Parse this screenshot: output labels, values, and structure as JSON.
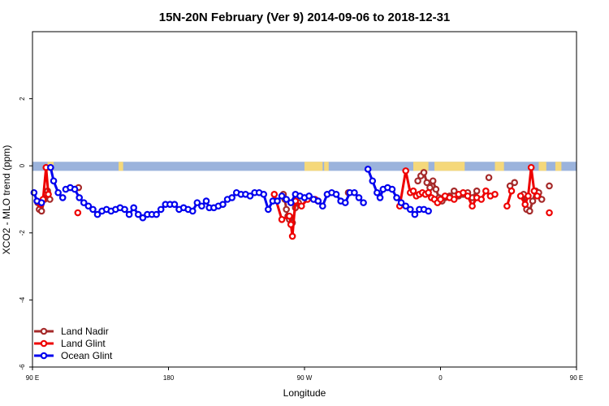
{
  "chart_data": {
    "type": "line",
    "title": "15N-20N February (Ver 9)   2014-09-06 to 2018-12-31",
    "xlabel": "Longitude",
    "ylabel": "XCO2 - MLO trend (ppm)",
    "xlim": [
      90,
      450
    ],
    "ylim": [
      -6,
      4
    ],
    "x_ticks": [
      {
        "value": 90,
        "label": "90 E"
      },
      {
        "value": 180,
        "label": "180"
      },
      {
        "value": 270,
        "label": "90 W"
      },
      {
        "value": 360,
        "label": "0"
      },
      {
        "value": 450,
        "label": "90 E"
      },
      {
        "value": 540,
        "label": "180"
      }
    ],
    "y_ticks": [
      {
        "value": -6,
        "label": "-6"
      },
      {
        "value": -4,
        "label": "-4"
      },
      {
        "value": -2,
        "label": "-2"
      },
      {
        "value": 0,
        "label": "0"
      },
      {
        "value": 2,
        "label": "2"
      }
    ],
    "land_band": {
      "y_top": 0.12,
      "y_bottom": -0.15,
      "ocean_color": "#9bb3dc",
      "land_color": "#f5d87a"
    },
    "land_segments": [
      [
        100,
        104
      ],
      [
        147,
        150
      ],
      [
        270,
        282
      ],
      [
        283,
        286
      ],
      [
        342,
        352
      ],
      [
        356,
        376
      ],
      [
        396,
        402
      ],
      [
        425,
        430
      ],
      [
        436,
        440
      ],
      [
        486,
        490
      ],
      [
        515,
        520
      ]
    ],
    "legend": {
      "placement": "bottom-left",
      "items": [
        {
          "label": "Land Nadir",
          "color": "#a52a2a"
        },
        {
          "label": "Land Glint",
          "color": "#ee0000"
        },
        {
          "label": "Ocean Glint",
          "color": "#0000ee"
        }
      ]
    },
    "series": [
      {
        "name": "Land Nadir",
        "color": "#a52a2a",
        "segments": [
          [
            [
              93.5,
              -1.1
            ],
            [
              94.5,
              -1.3
            ],
            [
              96,
              -1.35
            ],
            [
              98,
              -1.0
            ],
            [
              100,
              -0.75
            ],
            [
              101.5,
              -1.0
            ]
          ],
          [
            [
              120.5,
              -0.65
            ]
          ],
          [
            [
              345,
              -0.45
            ],
            [
              347,
              -0.3
            ],
            [
              349,
              -0.2
            ],
            [
              351,
              -0.5
            ],
            [
              353,
              -0.65
            ],
            [
              355,
              -0.45
            ],
            [
              357,
              -0.7
            ],
            [
              359,
              -0.95
            ],
            [
              361,
              -1.05
            ],
            [
              363,
              -0.95
            ],
            [
              366,
              -0.9
            ],
            [
              369,
              -0.75
            ],
            [
              372,
              -0.9
            ],
            [
              375,
              -0.85
            ],
            [
              378,
              -0.8
            ],
            [
              381,
              -0.95
            ],
            [
              384,
              -0.75
            ]
          ],
          [
            [
              256,
              -0.85
            ],
            [
              257,
              -1.0
            ],
            [
              258,
              -1.3
            ],
            [
              259,
              -1.5
            ],
            [
              260,
              -1.6
            ],
            [
              262,
              -1.7
            ],
            [
              264,
              -1.25
            ],
            [
              266,
              -1.1
            ]
          ],
          [
            [
              299,
              -0.8
            ]
          ],
          [
            [
              392,
              -0.35
            ]
          ],
          [
            [
              406,
              -0.6
            ],
            [
              409,
              -0.5
            ]
          ],
          [
            [
              415,
              -0.85
            ],
            [
              417,
              -1.3
            ],
            [
              419,
              -1.35
            ],
            [
              421,
              -1.05
            ],
            [
              423,
              -0.75
            ],
            [
              425,
              -0.8
            ],
            [
              427,
              -1.0
            ]
          ],
          [
            [
              432,
              -0.6
            ]
          ]
        ]
      },
      {
        "name": "Land Glint",
        "color": "#ee0000",
        "segments": [
          [
            [
              95.5,
              -1.15
            ],
            [
              97,
              -1.0
            ],
            [
              99,
              -0.05
            ],
            [
              100.5,
              -0.85
            ]
          ],
          [
            [
              120,
              -1.4
            ]
          ],
          [
            [
              250,
              -0.85
            ],
            [
              255,
              -1.6
            ],
            [
              260,
              -1.5
            ],
            [
              261,
              -1.75
            ],
            [
              262,
              -2.1
            ],
            [
              264,
              -1.05
            ],
            [
              268,
              -1.2
            ],
            [
              272,
              -1.0
            ],
            [
              277,
              -1.0
            ],
            [
              279,
              -1.05
            ]
          ],
          [
            [
              333,
              -1.2
            ],
            [
              337,
              -0.15
            ],
            [
              340,
              -0.8
            ],
            [
              342,
              -0.75
            ],
            [
              344,
              -0.9
            ],
            [
              346,
              -0.85
            ],
            [
              348,
              -0.8
            ],
            [
              350,
              -0.85
            ],
            [
              352,
              -0.8
            ],
            [
              354,
              -0.95
            ],
            [
              356,
              -1.0
            ],
            [
              358,
              -1.1
            ],
            [
              360,
              -1.0
            ],
            [
              363,
              -0.9
            ],
            [
              366,
              -0.95
            ],
            [
              369,
              -1.0
            ],
            [
              372,
              -0.85
            ],
            [
              375,
              -0.8
            ],
            [
              378,
              -0.9
            ],
            [
              381,
              -1.2
            ],
            [
              384,
              -0.95
            ],
            [
              387,
              -1.0
            ],
            [
              390,
              -0.75
            ],
            [
              393,
              -0.9
            ],
            [
              396,
              -0.85
            ]
          ],
          [
            [
              404,
              -1.2
            ],
            [
              407,
              -0.75
            ]
          ],
          [
            [
              413,
              -0.9
            ],
            [
              416,
              -1.15
            ],
            [
              418,
              -0.9
            ],
            [
              420,
              -0.05
            ],
            [
              422,
              -0.75
            ],
            [
              424,
              -0.9
            ]
          ],
          [
            [
              432,
              -1.4
            ]
          ]
        ]
      },
      {
        "name": "Ocean Glint",
        "color": "#0000ee",
        "segments": [
          [
            [
              91,
              -0.8
            ],
            [
              93,
              -1.05
            ],
            [
              96,
              -1.1
            ]
          ],
          [
            [
              102,
              -0.05
            ],
            [
              104,
              -0.45
            ],
            [
              107,
              -0.8
            ],
            [
              110,
              -0.95
            ]
          ],
          [
            [
              112,
              -0.7
            ],
            [
              115,
              -0.65
            ],
            [
              118,
              -0.7
            ],
            [
              121,
              -0.95
            ],
            [
              124,
              -1.1
            ],
            [
              127,
              -1.2
            ],
            [
              130,
              -1.3
            ],
            [
              133,
              -1.45
            ],
            [
              136,
              -1.35
            ],
            [
              139,
              -1.3
            ],
            [
              142,
              -1.35
            ],
            [
              145,
              -1.3
            ],
            [
              148,
              -1.25
            ],
            [
              151,
              -1.3
            ],
            [
              154,
              -1.45
            ],
            [
              157,
              -1.25
            ],
            [
              160,
              -1.45
            ],
            [
              163,
              -1.55
            ],
            [
              166,
              -1.45
            ],
            [
              169,
              -1.45
            ],
            [
              172,
              -1.45
            ],
            [
              175,
              -1.3
            ],
            [
              178,
              -1.15
            ],
            [
              181,
              -1.15
            ],
            [
              184,
              -1.15
            ],
            [
              187,
              -1.3
            ],
            [
              190,
              -1.25
            ],
            [
              193,
              -1.3
            ]
          ],
          [
            [
              196,
              -1.35
            ],
            [
              199,
              -1.1
            ],
            [
              202,
              -1.2
            ],
            [
              205,
              -1.05
            ],
            [
              207,
              -1.25
            ],
            [
              210,
              -1.25
            ],
            [
              213,
              -1.2
            ],
            [
              216,
              -1.15
            ],
            [
              219,
              -1.0
            ],
            [
              222,
              -0.95
            ],
            [
              225,
              -0.8
            ],
            [
              228,
              -0.85
            ],
            [
              231,
              -0.85
            ],
            [
              234,
              -0.9
            ],
            [
              237,
              -0.8
            ],
            [
              240,
              -0.8
            ]
          ],
          [
            [
              243,
              -0.85
            ],
            [
              246,
              -1.3
            ],
            [
              249,
              -1.05
            ],
            [
              252,
              -1.05
            ],
            [
              255,
              -0.9
            ],
            [
              258,
              -1.0
            ],
            [
              261,
              -1.1
            ],
            [
              264,
              -0.85
            ],
            [
              267,
              -0.9
            ],
            [
              270,
              -0.95
            ],
            [
              273,
              -0.9
            ],
            [
              276,
              -1.0
            ],
            [
              279,
              -1.05
            ],
            [
              282,
              -1.2
            ],
            [
              285,
              -0.85
            ],
            [
              288,
              -0.8
            ],
            [
              291,
              -0.85
            ],
            [
              294,
              -1.05
            ],
            [
              297,
              -1.1
            ],
            [
              300,
              -0.8
            ],
            [
              303,
              -0.8
            ],
            [
              306,
              -0.95
            ],
            [
              309,
              -1.1
            ]
          ],
          [
            [
              312,
              -0.1
            ],
            [
              315,
              -0.45
            ],
            [
              318,
              -0.8
            ],
            [
              320,
              -0.95
            ],
            [
              322,
              -0.7
            ],
            [
              325,
              -0.65
            ],
            [
              328,
              -0.7
            ],
            [
              331,
              -0.95
            ],
            [
              334,
              -1.1
            ],
            [
              337,
              -1.2
            ],
            [
              340,
              -1.3
            ],
            [
              343,
              -1.45
            ],
            [
              346,
              -1.3
            ],
            [
              349,
              -1.3
            ],
            [
              352,
              -1.35
            ]
          ]
        ]
      }
    ]
  }
}
